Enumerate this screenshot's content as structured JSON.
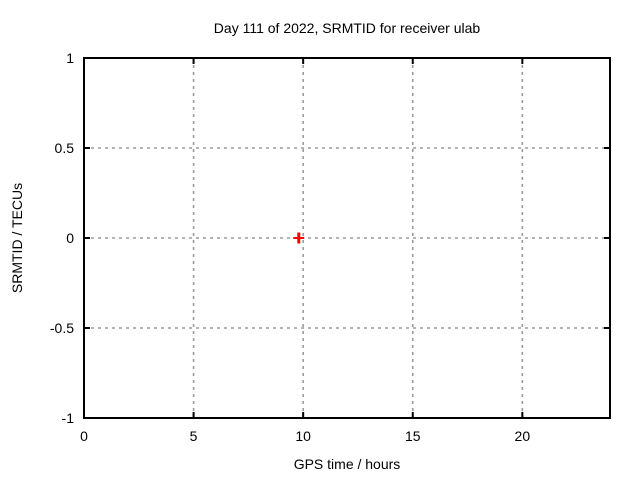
{
  "chart_data": {
    "type": "scatter",
    "title": "Day 111 of 2022, SRMTID for receiver ulab",
    "xlabel": "GPS time / hours",
    "ylabel": "SRMTID / TECUs",
    "xlim": [
      0,
      24
    ],
    "ylim": [
      -1,
      1
    ],
    "xticks": [
      {
        "value": 0,
        "label": "0"
      },
      {
        "value": 5,
        "label": "5"
      },
      {
        "value": 10,
        "label": "10"
      },
      {
        "value": 15,
        "label": "15"
      },
      {
        "value": 20,
        "label": "20"
      }
    ],
    "yticks": [
      {
        "value": -1,
        "label": "-1"
      },
      {
        "value": -0.5,
        "label": "-0.5"
      },
      {
        "value": 0,
        "label": "0"
      },
      {
        "value": 0.5,
        "label": "0.5"
      },
      {
        "value": 1,
        "label": "1"
      }
    ],
    "grid": true,
    "legend": false,
    "series": [
      {
        "marker": "plus",
        "color": "#ff0000",
        "points": [
          {
            "x": 9.8,
            "y": 0.0
          }
        ]
      }
    ],
    "colors": {
      "background": "#ffffff",
      "border": "#000000",
      "grid": "#9b9b9b",
      "text": "#000000",
      "marker": "#ff0000"
    }
  }
}
